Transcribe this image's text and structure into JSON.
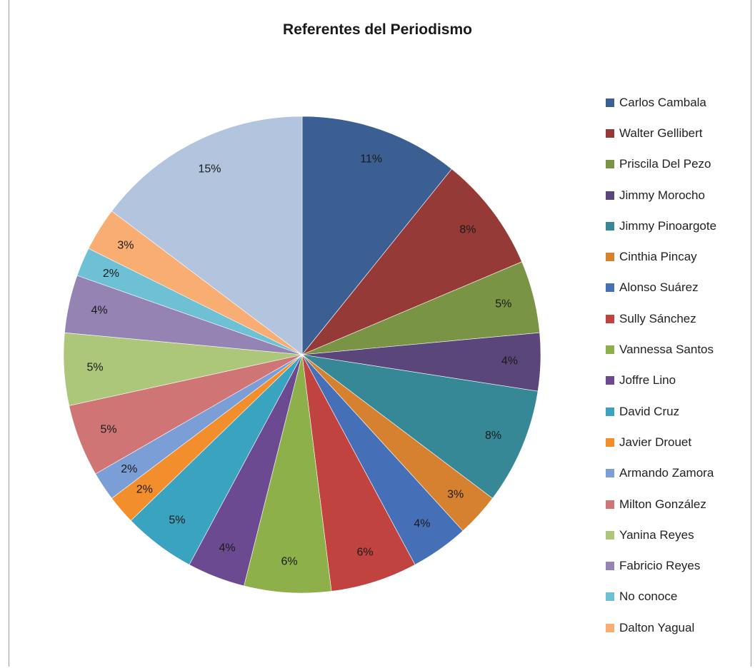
{
  "chart_data": {
    "type": "pie",
    "title": "Referentes del Periodismo",
    "legend_position": "right",
    "slices": [
      {
        "name": "Carlos Cambala",
        "value": 11,
        "label": "11%",
        "color": "#3b5f92"
      },
      {
        "name": "Walter Gellibert",
        "value": 8,
        "label": "8%",
        "color": "#963a38"
      },
      {
        "name": "Priscila Del Pezo",
        "value": 5,
        "label": "5%",
        "color": "#789444"
      },
      {
        "name": "Jimmy Morocho",
        "value": 4,
        "label": "4%",
        "color": "#5a467a"
      },
      {
        "name": "Jimmy Pinoargote",
        "value": 8,
        "label": "8%",
        "color": "#368897"
      },
      {
        "name": "Cinthia Pincay",
        "value": 3,
        "label": "3%",
        "color": "#d6812f"
      },
      {
        "name": "Alonso Suárez",
        "value": 4,
        "label": "4%",
        "color": "#4570b8"
      },
      {
        "name": "Sully Sánchez",
        "value": 6,
        "label": "6%",
        "color": "#c0433f"
      },
      {
        "name": "Vannessa Santos",
        "value": 6,
        "label": "6%",
        "color": "#8eb04a"
      },
      {
        "name": "Joffre Lino",
        "value": 4,
        "label": "4%",
        "color": "#6b4a92"
      },
      {
        "name": "David Cruz",
        "value": 5,
        "label": "5%",
        "color": "#3aa3c0"
      },
      {
        "name": "Javier Drouet",
        "value": 2,
        "label": "2%",
        "color": "#f28e2b"
      },
      {
        "name": "Armando Zamora",
        "value": 2,
        "label": "2%",
        "color": "#7b9ed6"
      },
      {
        "name": "Milton González",
        "value": 5,
        "label": "5%",
        "color": "#d07576"
      },
      {
        "name": "Yanina Reyes",
        "value": 5,
        "label": "5%",
        "color": "#acc67a"
      },
      {
        "name": "Fabricio Reyes",
        "value": 4,
        "label": "4%",
        "color": "#9583b4"
      },
      {
        "name": "No conoce",
        "value": 2,
        "label": "2%",
        "color": "#6ec0d4"
      },
      {
        "name": "Dalton Yagual",
        "value": 3,
        "label": "3%",
        "color": "#f8ad73"
      },
      {
        "name": "",
        "value": 15,
        "label": "15%",
        "color": "#b3c4df"
      }
    ]
  }
}
